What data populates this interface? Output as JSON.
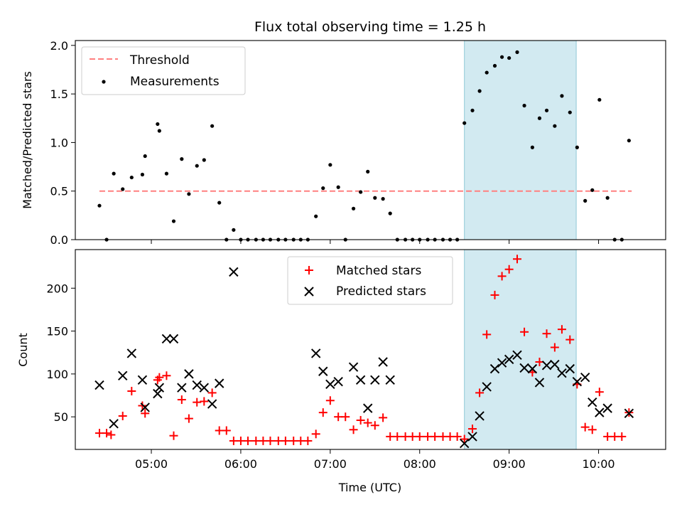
{
  "chart_data": {
    "title": "Flux total observing time = 1.25 h",
    "xlabel": "Time (UTC)",
    "x_unit": "hours UTC",
    "xlim": [
      4.15,
      10.75
    ],
    "xticks": [
      {
        "t": 5.0,
        "label": "05:00"
      },
      {
        "t": 6.0,
        "label": "06:00"
      },
      {
        "t": 7.0,
        "label": "07:00"
      },
      {
        "t": 8.0,
        "label": "08:00"
      },
      {
        "t": 9.0,
        "label": "09:00"
      },
      {
        "t": 10.0,
        "label": "10:00"
      }
    ],
    "highlight_span": {
      "start": 8.5,
      "end": 9.75,
      "color": "#add8e6"
    },
    "top": {
      "type": "scatter",
      "ylabel": "Matched/Predicted stars",
      "ylim": [
        0,
        2.05
      ],
      "yticks": [
        {
          "v": 0.0,
          "label": "0.0"
        },
        {
          "v": 0.5,
          "label": "0.5"
        },
        {
          "v": 1.0,
          "label": "1.0"
        },
        {
          "v": 1.5,
          "label": "1.5"
        },
        {
          "v": 2.0,
          "label": "2.0"
        }
      ],
      "legend": {
        "placement": "upper left",
        "entries": [
          "Threshold",
          "Measurements"
        ]
      },
      "threshold": {
        "name": "Threshold",
        "value": 0.5,
        "x_range": [
          4.42,
          10.37
        ],
        "color": "#ff8080"
      },
      "measurements": {
        "name": "Measurements",
        "color": "#000000",
        "points": [
          [
            4.42,
            0.35
          ],
          [
            4.5,
            0.0
          ],
          [
            4.58,
            0.68
          ],
          [
            4.68,
            0.52
          ],
          [
            4.78,
            0.64
          ],
          [
            4.9,
            0.67
          ],
          [
            4.93,
            0.86
          ],
          [
            5.07,
            1.19
          ],
          [
            5.09,
            1.12
          ],
          [
            5.17,
            0.68
          ],
          [
            5.25,
            0.19
          ],
          [
            5.34,
            0.83
          ],
          [
            5.42,
            0.47
          ],
          [
            5.51,
            0.76
          ],
          [
            5.59,
            0.82
          ],
          [
            5.68,
            1.17
          ],
          [
            5.76,
            0.38
          ],
          [
            5.84,
            0.0
          ],
          [
            5.92,
            0.1
          ],
          [
            6.0,
            0.0
          ],
          [
            6.08,
            0.0
          ],
          [
            6.17,
            0.0
          ],
          [
            6.25,
            0.0
          ],
          [
            6.33,
            0.0
          ],
          [
            6.42,
            0.0
          ],
          [
            6.5,
            0.0
          ],
          [
            6.59,
            0.0
          ],
          [
            6.67,
            0.0
          ],
          [
            6.75,
            0.0
          ],
          [
            6.84,
            0.24
          ],
          [
            6.92,
            0.53
          ],
          [
            7.0,
            0.77
          ],
          [
            7.09,
            0.54
          ],
          [
            7.17,
            0.0
          ],
          [
            7.26,
            0.32
          ],
          [
            7.34,
            0.49
          ],
          [
            7.42,
            0.7
          ],
          [
            7.5,
            0.43
          ],
          [
            7.59,
            0.42
          ],
          [
            7.67,
            0.27
          ],
          [
            7.75,
            0.0
          ],
          [
            7.84,
            0.0
          ],
          [
            7.92,
            0.0
          ],
          [
            8.0,
            0.0
          ],
          [
            8.09,
            0.0
          ],
          [
            8.17,
            0.0
          ],
          [
            8.26,
            0.0
          ],
          [
            8.34,
            0.0
          ],
          [
            8.42,
            0.0
          ],
          [
            8.5,
            1.2
          ],
          [
            8.59,
            1.33
          ],
          [
            8.67,
            1.53
          ],
          [
            8.75,
            1.72
          ],
          [
            8.84,
            1.79
          ],
          [
            8.92,
            1.88
          ],
          [
            9.0,
            1.87
          ],
          [
            9.09,
            1.93
          ],
          [
            9.17,
            1.38
          ],
          [
            9.26,
            0.95
          ],
          [
            9.34,
            1.25
          ],
          [
            9.42,
            1.33
          ],
          [
            9.51,
            1.17
          ],
          [
            9.59,
            1.48
          ],
          [
            9.68,
            1.31
          ],
          [
            9.76,
            0.95
          ],
          [
            9.85,
            0.4
          ],
          [
            9.93,
            0.51
          ],
          [
            10.01,
            1.44
          ],
          [
            10.1,
            0.43
          ],
          [
            10.18,
            0.0
          ],
          [
            10.26,
            0.0
          ],
          [
            10.34,
            1.02
          ]
        ]
      }
    },
    "bottom": {
      "type": "scatter",
      "ylabel": "Count",
      "ylim": [
        12,
        245
      ],
      "yticks": [
        {
          "v": 50,
          "label": "50"
        },
        {
          "v": 100,
          "label": "100"
        },
        {
          "v": 150,
          "label": "150"
        },
        {
          "v": 200,
          "label": "200"
        }
      ],
      "legend": {
        "placement": "upper center",
        "entries": [
          "Matched stars",
          "Predicted stars"
        ]
      },
      "series": [
        {
          "name": "Matched stars",
          "marker": "plus",
          "color": "#ff0000",
          "points": [
            [
              4.42,
              31
            ],
            [
              4.5,
              31
            ],
            [
              4.55,
              29
            ],
            [
              4.68,
              51
            ],
            [
              4.78,
              80
            ],
            [
              4.9,
              63
            ],
            [
              4.93,
              54
            ],
            [
              5.07,
              93
            ],
            [
              5.09,
              96
            ],
            [
              5.17,
              98
            ],
            [
              5.25,
              28
            ],
            [
              5.34,
              70
            ],
            [
              5.42,
              48
            ],
            [
              5.51,
              67
            ],
            [
              5.59,
              68
            ],
            [
              5.68,
              78
            ],
            [
              5.76,
              34
            ],
            [
              5.84,
              34
            ],
            [
              5.92,
              22
            ],
            [
              6.0,
              22
            ],
            [
              6.08,
              22
            ],
            [
              6.17,
              22
            ],
            [
              6.25,
              22
            ],
            [
              6.33,
              22
            ],
            [
              6.42,
              22
            ],
            [
              6.5,
              22
            ],
            [
              6.59,
              22
            ],
            [
              6.67,
              22
            ],
            [
              6.75,
              22
            ],
            [
              6.84,
              30
            ],
            [
              6.92,
              55
            ],
            [
              7.0,
              69
            ],
            [
              7.09,
              50
            ],
            [
              7.17,
              50
            ],
            [
              7.26,
              35
            ],
            [
              7.34,
              46
            ],
            [
              7.42,
              43
            ],
            [
              7.5,
              40
            ],
            [
              7.59,
              49
            ],
            [
              7.67,
              27
            ],
            [
              7.75,
              27
            ],
            [
              7.84,
              27
            ],
            [
              7.92,
              27
            ],
            [
              8.0,
              27
            ],
            [
              8.09,
              27
            ],
            [
              8.17,
              27
            ],
            [
              8.26,
              27
            ],
            [
              8.34,
              27
            ],
            [
              8.42,
              27
            ],
            [
              8.5,
              24
            ],
            [
              8.59,
              36
            ],
            [
              8.67,
              78
            ],
            [
              8.75,
              146
            ],
            [
              8.84,
              192
            ],
            [
              8.92,
              214
            ],
            [
              9.0,
              222
            ],
            [
              9.09,
              234
            ],
            [
              9.17,
              149
            ],
            [
              9.26,
              102
            ],
            [
              9.34,
              114
            ],
            [
              9.42,
              147
            ],
            [
              9.51,
              131
            ],
            [
              9.59,
              152
            ],
            [
              9.68,
              140
            ],
            [
              9.76,
              88
            ],
            [
              9.85,
              38
            ],
            [
              9.93,
              35
            ],
            [
              10.01,
              79
            ],
            [
              10.1,
              27
            ],
            [
              10.18,
              27
            ],
            [
              10.26,
              27
            ],
            [
              10.34,
              55
            ]
          ]
        },
        {
          "name": "Predicted stars",
          "marker": "x",
          "color": "#000000",
          "points": [
            [
              4.42,
              87
            ],
            [
              4.58,
              42
            ],
            [
              4.68,
              98
            ],
            [
              4.78,
              124
            ],
            [
              4.9,
              93
            ],
            [
              4.93,
              61
            ],
            [
              5.07,
              77
            ],
            [
              5.09,
              84
            ],
            [
              5.17,
              141
            ],
            [
              5.25,
              141
            ],
            [
              5.34,
              84
            ],
            [
              5.42,
              100
            ],
            [
              5.51,
              87
            ],
            [
              5.59,
              84
            ],
            [
              5.68,
              65
            ],
            [
              5.76,
              89
            ],
            [
              5.92,
              219
            ],
            [
              6.84,
              124
            ],
            [
              6.92,
              103
            ],
            [
              7.0,
              88
            ],
            [
              7.09,
              91
            ],
            [
              7.26,
              108
            ],
            [
              7.34,
              93
            ],
            [
              7.42,
              60
            ],
            [
              7.5,
              93
            ],
            [
              7.59,
              114
            ],
            [
              7.67,
              93
            ],
            [
              8.5,
              19
            ],
            [
              8.59,
              27
            ],
            [
              8.67,
              51
            ],
            [
              8.75,
              85
            ],
            [
              8.84,
              106
            ],
            [
              8.92,
              113
            ],
            [
              9.0,
              117
            ],
            [
              9.09,
              122
            ],
            [
              9.17,
              107
            ],
            [
              9.26,
              106
            ],
            [
              9.34,
              90
            ],
            [
              9.42,
              110
            ],
            [
              9.51,
              111
            ],
            [
              9.59,
              101
            ],
            [
              9.68,
              106
            ],
            [
              9.76,
              91
            ],
            [
              9.85,
              96
            ],
            [
              9.93,
              67
            ],
            [
              10.01,
              55
            ],
            [
              10.1,
              60
            ],
            [
              10.34,
              54
            ]
          ]
        }
      ]
    }
  }
}
